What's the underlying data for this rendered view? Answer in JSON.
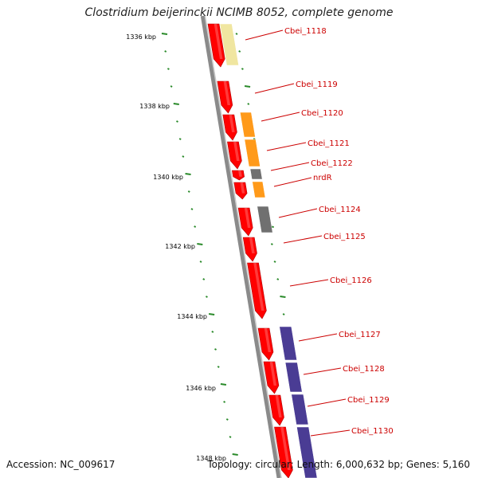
{
  "title": "Clostridium beijerinckii NCIMB 8052, complete genome",
  "accession": "Accession: NC_009617",
  "topology": "Topology: circular; Length: 6,000,632 bp; Genes: 5,160",
  "kbp_ticks": [
    "1336 kbp",
    "1338 kbp",
    "1340 kbp",
    "1342 kbp",
    "1344 kbp",
    "1346 kbp",
    "1348 kbp"
  ],
  "genes": [
    {
      "label": "Cbei_1118",
      "color": "#ff0000"
    },
    {
      "label": "Cbei_1119",
      "color": "#ff0000"
    },
    {
      "label": "Cbei_1120",
      "color": "#ff0000"
    },
    {
      "label": "Cbei_1121",
      "color": "#ff0000"
    },
    {
      "label": "Cbei_1122",
      "color": "#ff0000"
    },
    {
      "label": "nrdR",
      "color": "#ff0000"
    },
    {
      "label": "Cbei_1124",
      "color": "#ff0000"
    },
    {
      "label": "Cbei_1125",
      "color": "#ff0000"
    },
    {
      "label": "Cbei_1126",
      "color": "#ff0000"
    },
    {
      "label": "Cbei_1127",
      "color": "#ff0000"
    },
    {
      "label": "Cbei_1128",
      "color": "#ff0000"
    },
    {
      "label": "Cbei_1129",
      "color": "#ff0000"
    },
    {
      "label": "Cbei_1130",
      "color": "#ff0000"
    }
  ],
  "colors": {
    "backbone": "#8a8a8a",
    "cog_yellow": "#f0e6a0",
    "cog_orange": "#ff9a1a",
    "cog_gray": "#707070",
    "cog_purple": "#4a3c94",
    "gc_tick": "#2a8a2a"
  }
}
